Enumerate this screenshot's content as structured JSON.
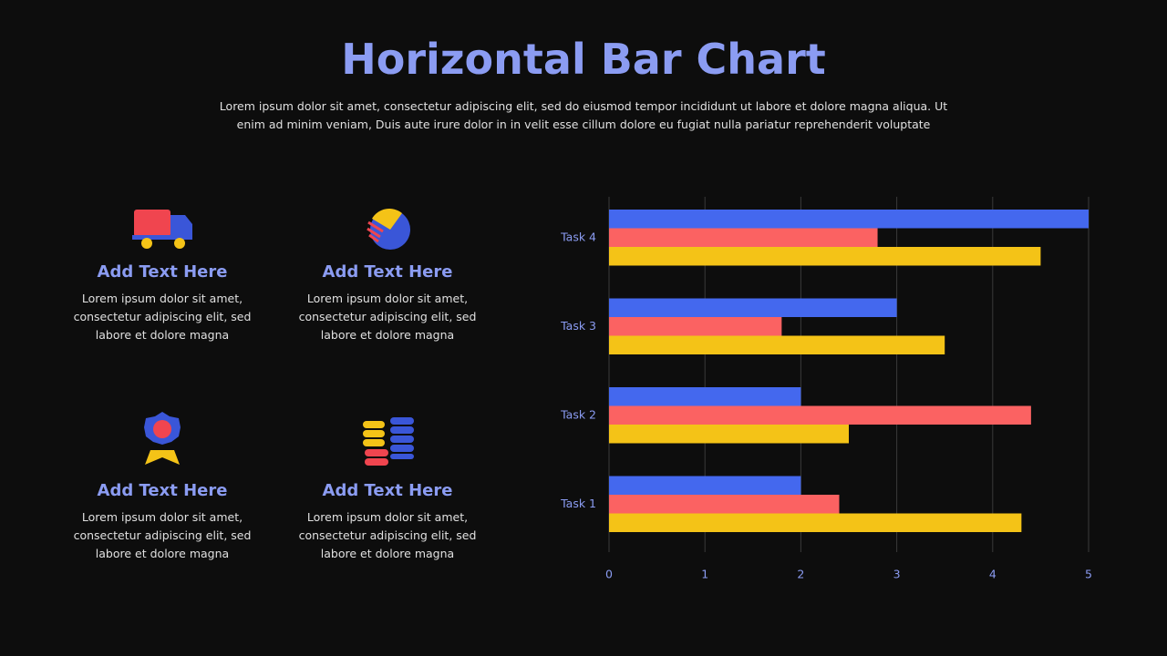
{
  "header": {
    "title": "Horizontal Bar Chart",
    "subtitle": "Lorem ipsum dolor sit amet, consectetur adipiscing elit, sed do eiusmod tempor incididunt ut labore et dolore magna aliqua. Ut enim ad minim veniam, Duis aute irure dolor in in velit esse cillum dolore eu fugiat nulla pariatur reprehenderit voluptate"
  },
  "cards": [
    {
      "title": "Add Text Here",
      "text": "Lorem ipsum dolor sit amet, consectetur adipiscing elit, sed labore et dolore magna"
    },
    {
      "title": "Add Text Here",
      "text": "Lorem ipsum dolor sit amet, consectetur adipiscing elit, sed labore et dolore magna"
    },
    {
      "title": "Add Text Here",
      "text": "Lorem ipsum dolor sit amet, consectetur adipiscing elit, sed labore et dolore magna"
    },
    {
      "title": "Add Text Here",
      "text": "Lorem ipsum dolor sit amet, consectetur adipiscing elit, sed labore et dolore magna"
    }
  ],
  "chart_data": {
    "type": "bar",
    "orientation": "horizontal",
    "categories": [
      "Task 1",
      "Task 2",
      "Task 3",
      "Task 4"
    ],
    "series": [
      {
        "color": "#4468ee",
        "values": [
          2,
          2,
          3,
          5
        ]
      },
      {
        "color": "#fb6262",
        "values": [
          2.4,
          4.4,
          1.8,
          2.8
        ]
      },
      {
        "color": "#f4c317",
        "values": [
          4.3,
          2.5,
          3.5,
          4.5
        ]
      }
    ],
    "xlim": [
      0,
      5
    ],
    "xticks": [
      0,
      1,
      2,
      3,
      4,
      5
    ],
    "grid": true
  }
}
